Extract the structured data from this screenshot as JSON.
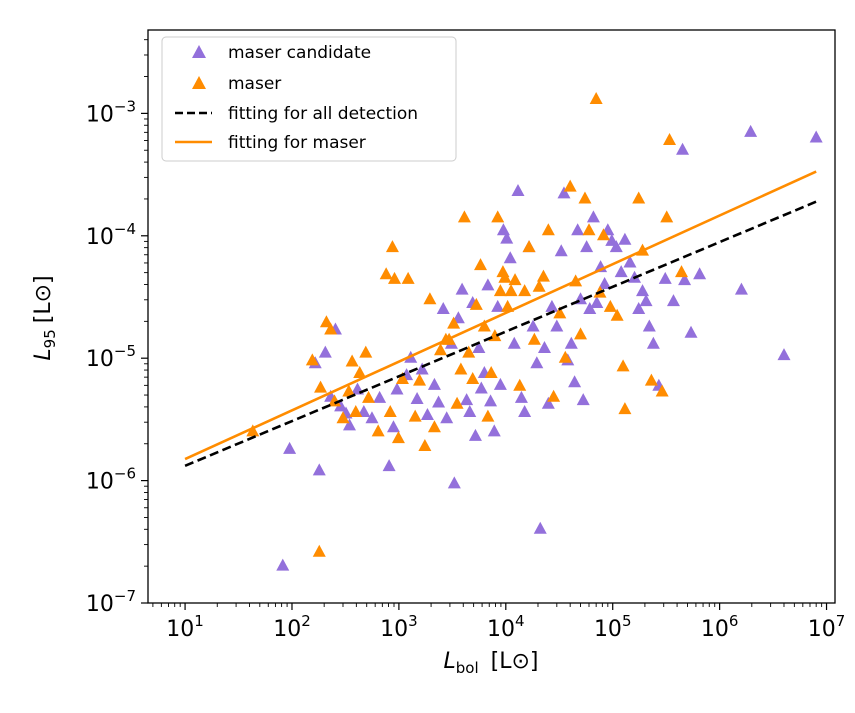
{
  "chart_data": {
    "type": "scatter",
    "xscale": "log",
    "yscale": "log",
    "xlim": [
      4.5,
      12000000
    ],
    "ylim": [
      1e-07,
      0.0048
    ],
    "xlabel": {
      "main": "L",
      "sub": "bol",
      "unit": "[L⊙]"
    },
    "ylabel": {
      "main": "L",
      "sub": "95",
      "unit": "[L⊙]"
    },
    "x_ticks": [
      {
        "value": 10,
        "base": "10",
        "exp": "1"
      },
      {
        "value": 100,
        "base": "10",
        "exp": "2"
      },
      {
        "value": 1000,
        "base": "10",
        "exp": "3"
      },
      {
        "value": 10000,
        "base": "10",
        "exp": "4"
      },
      {
        "value": 100000,
        "base": "10",
        "exp": "5"
      },
      {
        "value": 1000000,
        "base": "10",
        "exp": "6"
      },
      {
        "value": 10000000,
        "base": "10",
        "exp": "7"
      }
    ],
    "y_ticks": [
      {
        "value": 1e-07,
        "base": "10",
        "exp": "−7"
      },
      {
        "value": 1e-06,
        "base": "10",
        "exp": "−6"
      },
      {
        "value": 1e-05,
        "base": "10",
        "exp": "−5"
      },
      {
        "value": 0.0001,
        "base": "10",
        "exp": "−4"
      },
      {
        "value": 0.001,
        "base": "10",
        "exp": "−3"
      }
    ],
    "legend": {
      "position": "top-left"
    },
    "series": [
      {
        "name": "maser candidate",
        "marker": "triangle",
        "color": "#9370DB",
        "points": [
          [
            82,
            2e-07
          ],
          [
            95,
            1.8e-06
          ],
          [
            165,
            9e-06
          ],
          [
            180,
            1.2e-06
          ],
          [
            205,
            1.1e-05
          ],
          [
            230,
            4.8e-06
          ],
          [
            255,
            1.7e-05
          ],
          [
            285,
            4e-06
          ],
          [
            320,
            3.5e-06
          ],
          [
            345,
            2.8e-06
          ],
          [
            410,
            5.5e-06
          ],
          [
            470,
            3.6e-06
          ],
          [
            560,
            3.2e-06
          ],
          [
            660,
            4.7e-06
          ],
          [
            810,
            1.3e-06
          ],
          [
            890,
            2.7e-06
          ],
          [
            960,
            5.5e-06
          ],
          [
            1180,
            7.2e-06
          ],
          [
            1290,
            1e-05
          ],
          [
            1480,
            4.6e-06
          ],
          [
            1650,
            8e-06
          ],
          [
            1850,
            3.4e-06
          ],
          [
            2150,
            6e-06
          ],
          [
            2350,
            4.3e-06
          ],
          [
            2600,
            2.5e-05
          ],
          [
            2800,
            3.2e-06
          ],
          [
            3100,
            1.3e-05
          ],
          [
            3300,
            9.4e-07
          ],
          [
            3600,
            2.1e-05
          ],
          [
            3900,
            3.6e-05
          ],
          [
            4300,
            4.5e-06
          ],
          [
            4600,
            3.6e-06
          ],
          [
            4900,
            2.8e-05
          ],
          [
            5200,
            2.3e-06
          ],
          [
            5600,
            1.2e-05
          ],
          [
            5900,
            5.6e-06
          ],
          [
            6300,
            7.5e-06
          ],
          [
            6800,
            3.9e-05
          ],
          [
            7200,
            4.4e-06
          ],
          [
            7800,
            2.5e-06
          ],
          [
            8400,
            2.6e-05
          ],
          [
            8900,
            6e-06
          ],
          [
            9500,
            0.00011
          ],
          [
            10200,
            9.4e-05
          ],
          [
            11000,
            6.5e-05
          ],
          [
            12000,
            1.3e-05
          ],
          [
            13000,
            0.00023
          ],
          [
            14000,
            4.7e-06
          ],
          [
            15000,
            3.6e-06
          ],
          [
            16500,
            8e-05
          ],
          [
            18000,
            1.8e-05
          ],
          [
            19500,
            9e-06
          ],
          [
            21000,
            4e-07
          ],
          [
            23000,
            1.2e-05
          ],
          [
            25000,
            4.2e-06
          ],
          [
            27000,
            2.6e-05
          ],
          [
            30000,
            1.8e-05
          ],
          [
            33000,
            7.4e-05
          ],
          [
            35000,
            0.00022
          ],
          [
            38000,
            9.5e-06
          ],
          [
            41000,
            1.3e-05
          ],
          [
            44000,
            6.3e-06
          ],
          [
            47000,
            0.00011
          ],
          [
            50000,
            3e-05
          ],
          [
            53000,
            4.5e-06
          ],
          [
            57000,
            8e-05
          ],
          [
            61000,
            2.5e-05
          ],
          [
            66000,
            0.00014
          ],
          [
            71000,
            2.8e-05
          ],
          [
            77000,
            5.5e-05
          ],
          [
            84000,
            4e-05
          ],
          [
            90000,
            0.00011
          ],
          [
            98000,
            9e-05
          ],
          [
            108000,
            8e-05
          ],
          [
            120000,
            5e-05
          ],
          [
            130000,
            9.2e-05
          ],
          [
            145000,
            6e-05
          ],
          [
            160000,
            4.5e-05
          ],
          [
            175000,
            2.5e-05
          ],
          [
            190000,
            3.5e-05
          ],
          [
            205000,
            2.9e-05
          ],
          [
            220000,
            1.8e-05
          ],
          [
            240000,
            1.3e-05
          ],
          [
            270000,
            5.9e-06
          ],
          [
            310000,
            4.4e-05
          ],
          [
            370000,
            2.9e-05
          ],
          [
            450000,
            0.0005
          ],
          [
            470000,
            4.3e-05
          ],
          [
            540000,
            1.6e-05
          ],
          [
            650000,
            4.8e-05
          ],
          [
            1600000,
            3.6e-05
          ],
          [
            1950000,
            0.0007
          ],
          [
            4000000,
            1.05e-05
          ],
          [
            8000000,
            0.00063
          ]
        ]
      },
      {
        "name": "maser",
        "marker": "triangle",
        "color": "#FF8C00",
        "points": [
          [
            43,
            2.5e-06
          ],
          [
            155,
            9.5e-06
          ],
          [
            180,
            2.6e-07
          ],
          [
            185,
            5.7e-06
          ],
          [
            210,
            1.95e-05
          ],
          [
            230,
            1.7e-05
          ],
          [
            250,
            4.4e-06
          ],
          [
            300,
            3.2e-06
          ],
          [
            340,
            5.3e-06
          ],
          [
            365,
            9.3e-06
          ],
          [
            395,
            3.6e-06
          ],
          [
            430,
            7.5e-06
          ],
          [
            490,
            1.1e-05
          ],
          [
            520,
            4.7e-06
          ],
          [
            640,
            2.5e-06
          ],
          [
            760,
            4.8e-05
          ],
          [
            830,
            3.6e-06
          ],
          [
            870,
            8e-05
          ],
          [
            910,
            4.4e-05
          ],
          [
            990,
            2.2e-06
          ],
          [
            1080,
            6.7e-06
          ],
          [
            1220,
            4.4e-05
          ],
          [
            1420,
            3.3e-06
          ],
          [
            1560,
            6.5e-06
          ],
          [
            1750,
            1.9e-06
          ],
          [
            1950,
            3e-05
          ],
          [
            2150,
            2.7e-06
          ],
          [
            2450,
            1.15e-05
          ],
          [
            2750,
            1.4e-05
          ],
          [
            2950,
            1.4e-05
          ],
          [
            3250,
            1.9e-05
          ],
          [
            3500,
            4.2e-06
          ],
          [
            3800,
            8e-06
          ],
          [
            4100,
            0.00014
          ],
          [
            4500,
            1.1e-05
          ],
          [
            4900,
            6.7e-06
          ],
          [
            5300,
            2.7e-05
          ],
          [
            5800,
            5.7e-05
          ],
          [
            6300,
            1.8e-05
          ],
          [
            6800,
            3.3e-06
          ],
          [
            7300,
            7.5e-06
          ],
          [
            7900,
            1.5e-05
          ],
          [
            8400,
            0.00014
          ],
          [
            8900,
            3.5e-05
          ],
          [
            9400,
            5e-05
          ],
          [
            9800,
            4.5e-05
          ],
          [
            10400,
            2.6e-05
          ],
          [
            11200,
            3.5e-05
          ],
          [
            12200,
            4.3e-05
          ],
          [
            13500,
            5.9e-06
          ],
          [
            15000,
            3.5e-05
          ],
          [
            16500,
            8e-05
          ],
          [
            18500,
            1.4e-05
          ],
          [
            20500,
            3.8e-05
          ],
          [
            22500,
            4.6e-05
          ],
          [
            25000,
            0.00011
          ],
          [
            28000,
            4.8e-06
          ],
          [
            32000,
            2.3e-05
          ],
          [
            36000,
            1e-05
          ],
          [
            40000,
            0.00025
          ],
          [
            45000,
            4.2e-05
          ],
          [
            50000,
            1.55e-05
          ],
          [
            55000,
            0.0002
          ],
          [
            60000,
            0.00011
          ],
          [
            70000,
            0.0013
          ],
          [
            76000,
            3.4e-05
          ],
          [
            82000,
            0.0001
          ],
          [
            95000,
            2.6e-05
          ],
          [
            110000,
            2.2e-05
          ],
          [
            125000,
            8.5e-06
          ],
          [
            130000,
            3.8e-06
          ],
          [
            175000,
            0.0002
          ],
          [
            190000,
            7.5e-05
          ],
          [
            230000,
            6.5e-06
          ],
          [
            290000,
            5.3e-06
          ],
          [
            320000,
            0.00014
          ],
          [
            340000,
            0.0006
          ],
          [
            440000,
            5e-05
          ]
        ]
      }
    ],
    "lines": [
      {
        "name": "fitting for all detection",
        "style": "dashed",
        "color": "#000000",
        "x": [
          10,
          8000000
        ],
        "y": [
          1.32e-06,
          0.00019
        ]
      },
      {
        "name": "fitting for maser",
        "style": "solid",
        "color": "#FF8C00",
        "x": [
          10,
          8000000
        ],
        "y": [
          1.5e-06,
          0.000335
        ]
      }
    ]
  }
}
